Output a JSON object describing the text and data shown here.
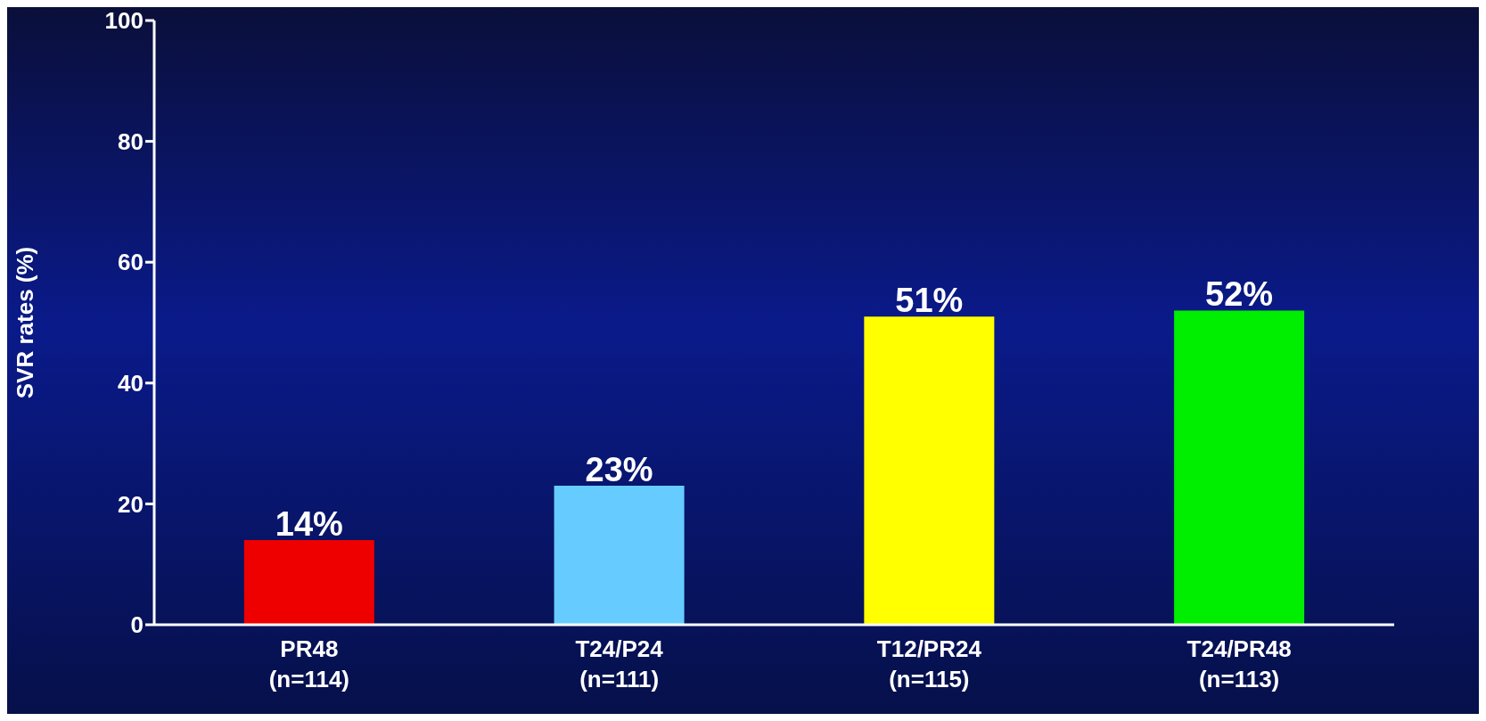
{
  "chart_data": {
    "type": "bar",
    "ylabel": "SVR rates (%)",
    "categories": [
      "PR48\n(n=114)",
      "T24/P24\n(n=111)",
      "T12/PR24\n(n=115)",
      "T24/PR48\n(n=113)"
    ],
    "values": [
      14,
      23,
      51,
      52
    ],
    "colors": [
      "#ee0000",
      "#66ccff",
      "#ffff00",
      "#00ee00"
    ],
    "value_labels": [
      "14%",
      "23%",
      "51%",
      "52%"
    ],
    "ylim": [
      0,
      100
    ],
    "yticks": [
      0,
      20,
      40,
      60,
      80,
      100
    ],
    "grid": false
  }
}
